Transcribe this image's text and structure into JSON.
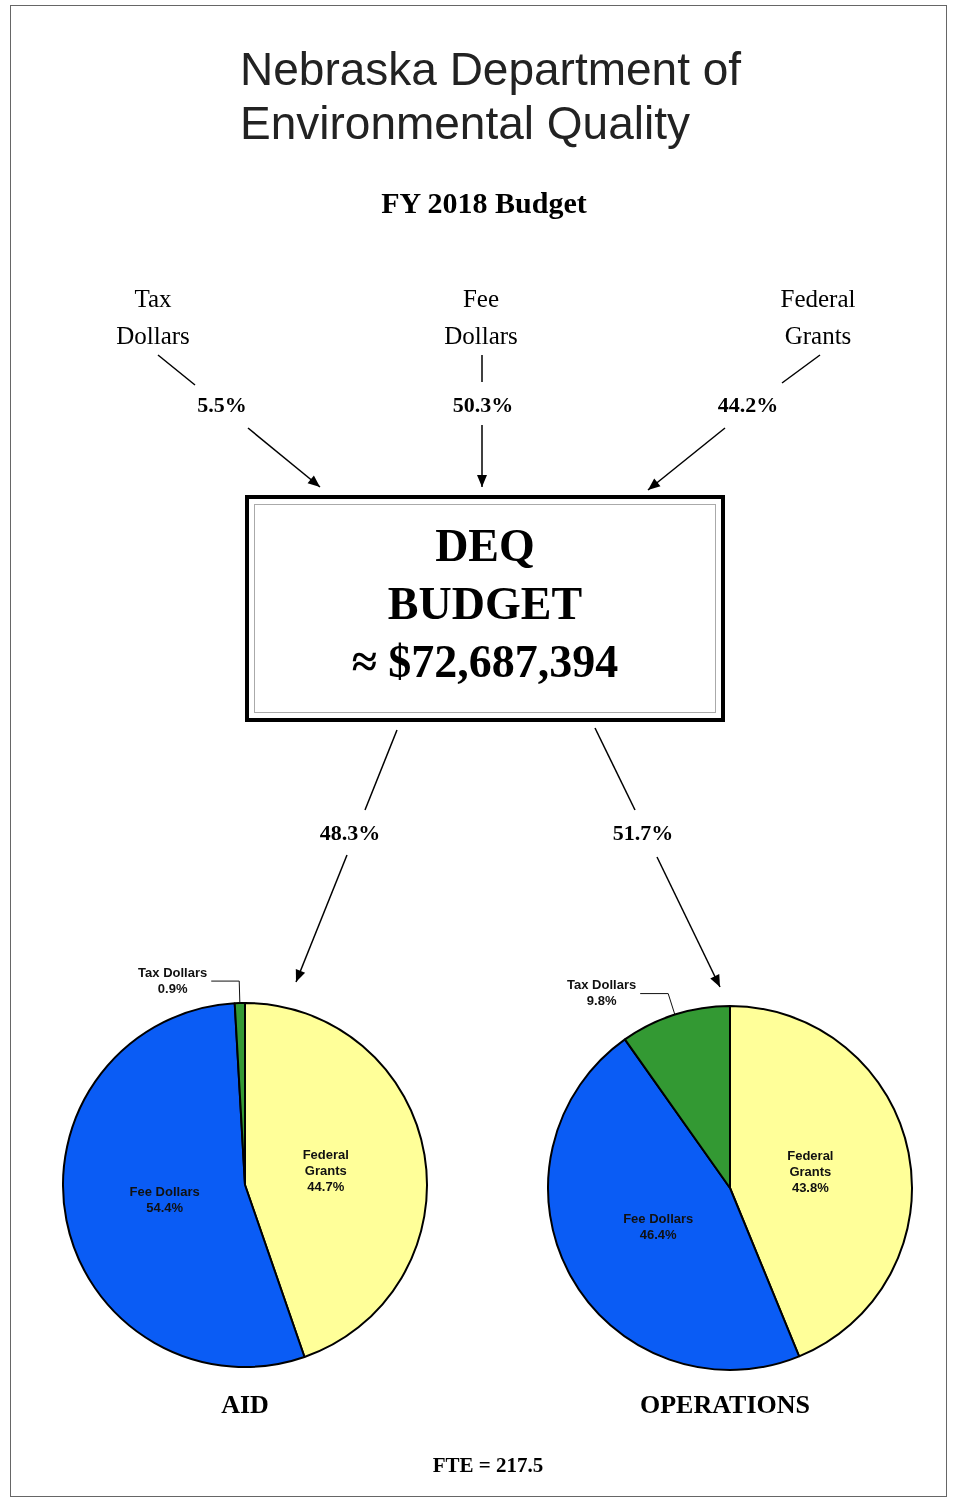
{
  "chart_data": [
    {
      "type": "other",
      "title": "Nebraska Department of Environmental Quality",
      "subtitle": "FY 2018 Budget",
      "categories": [
        "Tax Dollars",
        "Fee Dollars",
        "Federal Grants"
      ],
      "values": [
        5.5,
        50.3,
        44.2
      ],
      "value_labels": [
        "5.5%",
        "50.3%",
        "44.2%"
      ],
      "annotations": [
        "DEQ BUDGET",
        "≈ $72,687,394",
        "FTE = 217.5"
      ]
    },
    {
      "type": "pie",
      "title": "AID",
      "categories": [
        "Federal Grants",
        "Fee Dollars",
        "Tax Dollars"
      ],
      "values": [
        44.7,
        54.4,
        0.9
      ],
      "value_labels": [
        "44.7%",
        "54.4%",
        "0.9%"
      ],
      "colors": [
        "#ffff99",
        "#0a5cf5",
        "#339933"
      ],
      "annotations": [
        "48.3%"
      ]
    },
    {
      "type": "pie",
      "title": "OPERATIONS",
      "categories": [
        "Federal Grants",
        "Fee Dollars",
        "Tax Dollars"
      ],
      "values": [
        43.8,
        46.4,
        9.8
      ],
      "value_labels": [
        "43.8%",
        "46.4%",
        "9.8%"
      ],
      "colors": [
        "#ffff99",
        "#0a5cf5",
        "#339933"
      ],
      "annotations": [
        "51.7%"
      ]
    }
  ]
}
